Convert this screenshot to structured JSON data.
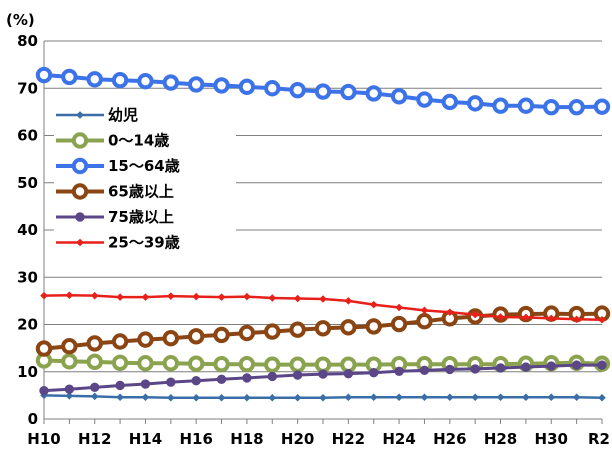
{
  "chart_data": {
    "type": "line",
    "unit_label": "(%)",
    "ylim": [
      0,
      80
    ],
    "yticks": [
      0,
      10,
      20,
      30,
      40,
      50,
      60,
      70,
      80
    ],
    "x": [
      "H10",
      "H11",
      "H12",
      "H13",
      "H14",
      "H15",
      "H16",
      "H17",
      "H18",
      "H19",
      "H20",
      "H21",
      "H22",
      "H23",
      "H24",
      "H25",
      "H26",
      "H27",
      "H28",
      "H29",
      "H30",
      "R1",
      "R2"
    ],
    "xtick_labels": [
      "H10",
      "H12",
      "H14",
      "H16",
      "H18",
      "H20",
      "H22",
      "H24",
      "H26",
      "H28",
      "H30",
      "R2"
    ],
    "grid": "horizontal",
    "legend_position": "left-middle",
    "series": [
      {
        "name": "幼児",
        "color": "#3A6EA8",
        "marker": "small-diamond",
        "values": [
          5.0,
          4.9,
          4.8,
          4.6,
          4.6,
          4.5,
          4.5,
          4.5,
          4.5,
          4.5,
          4.5,
          4.5,
          4.6,
          4.6,
          4.6,
          4.6,
          4.6,
          4.6,
          4.6,
          4.6,
          4.6,
          4.6,
          4.5
        ]
      },
      {
        "name": "0〜14歳",
        "color": "#8BA34F",
        "marker": "ring",
        "values": [
          12.4,
          12.2,
          12.1,
          11.9,
          11.8,
          11.8,
          11.7,
          11.6,
          11.6,
          11.5,
          11.5,
          11.5,
          11.5,
          11.5,
          11.6,
          11.6,
          11.6,
          11.6,
          11.6,
          11.7,
          11.8,
          11.9,
          11.7
        ]
      },
      {
        "name": "15〜64歳",
        "color": "#3D73E8",
        "marker": "ring",
        "values": [
          72.8,
          72.4,
          71.9,
          71.7,
          71.5,
          71.2,
          70.8,
          70.6,
          70.3,
          70.0,
          69.6,
          69.3,
          69.2,
          68.9,
          68.3,
          67.6,
          67.1,
          66.8,
          66.3,
          66.3,
          66.0,
          66.0,
          66.1
        ]
      },
      {
        "name": "65歳以上",
        "color": "#8B4513",
        "marker": "ring",
        "values": [
          14.9,
          15.4,
          16.0,
          16.4,
          16.8,
          17.1,
          17.5,
          17.8,
          18.2,
          18.5,
          18.9,
          19.2,
          19.4,
          19.6,
          20.1,
          20.7,
          21.3,
          21.7,
          22.1,
          22.2,
          22.3,
          22.2,
          22.3
        ]
      },
      {
        "name": "75歳以上",
        "color": "#5B4688",
        "marker": "dot",
        "values": [
          6.0,
          6.3,
          6.7,
          7.1,
          7.4,
          7.8,
          8.1,
          8.4,
          8.7,
          9.0,
          9.3,
          9.5,
          9.6,
          9.8,
          10.1,
          10.3,
          10.5,
          10.6,
          10.8,
          11.0,
          11.2,
          11.4,
          11.4
        ]
      },
      {
        "name": "25〜39歳",
        "color": "#E8201A",
        "marker": "small-diamond",
        "values": [
          26.1,
          26.2,
          26.1,
          25.8,
          25.8,
          26.0,
          25.9,
          25.8,
          25.9,
          25.6,
          25.5,
          25.4,
          25.0,
          24.2,
          23.6,
          23.0,
          22.6,
          22.1,
          21.6,
          21.5,
          21.3,
          21.1,
          21.0
        ]
      }
    ]
  }
}
